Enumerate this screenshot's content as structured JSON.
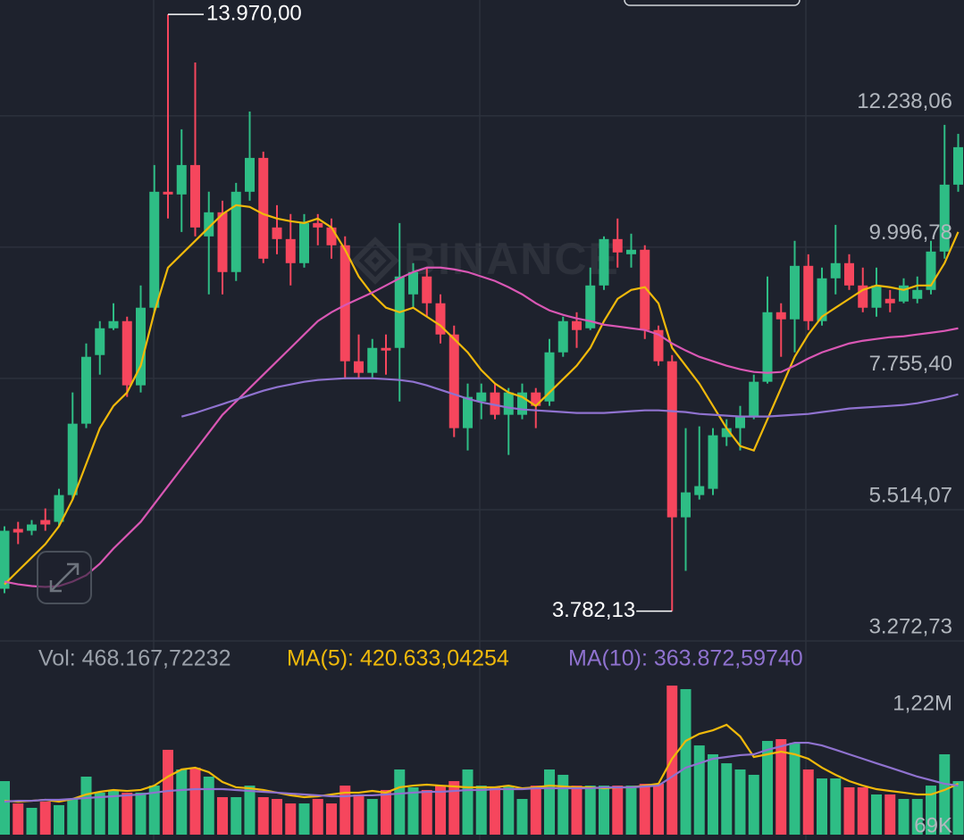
{
  "chart_data": {
    "type": "candlestick",
    "watermark": "BINANCE",
    "up_color": "#2ebd85",
    "down_color": "#f6465d",
    "ylim": [
      3272.73,
      14216
    ],
    "yticks": [
      {
        "value": 12238.06,
        "label": "12.238,06"
      },
      {
        "value": 9996.78,
        "label": "9.996,78"
      },
      {
        "value": 7755.4,
        "label": "7.755,40"
      },
      {
        "value": 5514.07,
        "label": "5.514,07"
      },
      {
        "value": 3272.73,
        "label": "3.272,73"
      }
    ],
    "grid": true,
    "open": [
      4164,
      5185,
      5154,
      5337,
      5306,
      5763,
      6982,
      8154,
      8611,
      8733,
      7637,
      8962,
      10942,
      10896,
      11398,
      10180,
      10591,
      9571,
      10942,
      11520,
      10332,
      10134,
      9723,
      10408,
      10332,
      10028,
      8048,
      7850,
      8276,
      8276,
      9190,
      9495,
      9038,
      8505,
      6906,
      7362,
      7515,
      7134,
      7134,
      7515,
      7362,
      8200,
      8733,
      8611,
      9342,
      10134,
      9875,
      9952,
      8581,
      8048,
      5383,
      5763,
      5870,
      6753,
      6906,
      7119,
      7698,
      8885,
      8764,
      9677,
      8733,
      9464,
      9723,
      9342,
      8962,
      9114,
      9068,
      9114,
      9266,
      9921,
      11063
    ],
    "high": [
      5230,
      5306,
      5337,
      5535,
      5870,
      7515,
      8352,
      8733,
      9038,
      8809,
      9342,
      11398,
      13970,
      12008,
      13150,
      10942,
      10789,
      11094,
      12312,
      11627,
      10713,
      10561,
      10561,
      10561,
      10485,
      10180,
      8505,
      8429,
      8505,
      10408,
      9723,
      9647,
      9190,
      8657,
      7667,
      7667,
      7667,
      7591,
      7667,
      7591,
      8429,
      8809,
      8885,
      9647,
      10180,
      10485,
      10226,
      10028,
      8657,
      8154,
      6906,
      6936,
      6906,
      7058,
      7286,
      7819,
      9495,
      9038,
      10104,
      9875,
      9647,
      10378,
      9875,
      9647,
      9647,
      9266,
      9464,
      9495,
      10104,
      12084,
      11931
    ],
    "low": [
      4088,
      4926,
      5078,
      5154,
      5230,
      5687,
      6906,
      7819,
      8581,
      7439,
      7515,
      8885,
      10485,
      10256,
      10180,
      9190,
      9190,
      9419,
      10789,
      9723,
      9875,
      9342,
      9647,
      10028,
      9799,
      7743,
      7743,
      7743,
      7819,
      7362,
      8962,
      8809,
      8352,
      6753,
      6525,
      7058,
      7058,
      6449,
      7058,
      6906,
      7286,
      8124,
      8276,
      8581,
      9266,
      9647,
      9647,
      8429,
      7972,
      3782.13,
      4469,
      5687,
      5763,
      6601,
      6525,
      7058,
      7667,
      8124,
      8200,
      8581,
      8657,
      9190,
      9266,
      8885,
      8809,
      8885,
      9038,
      9038,
      9190,
      9799,
      10942
    ],
    "close": [
      5154,
      5124,
      5261,
      5261,
      5763,
      6982,
      8124,
      8611,
      8733,
      7637,
      8962,
      10942,
      10896,
      11398,
      10332,
      10591,
      9571,
      10942,
      11520,
      9799,
      10134,
      9723,
      10408,
      10332,
      10028,
      8048,
      7850,
      8276,
      8231,
      9495,
      9571,
      9038,
      8505,
      6906,
      7439,
      7515,
      7134,
      7515,
      7515,
      7286,
      8200,
      8733,
      8581,
      9342,
      10134,
      9906,
      9952,
      8581,
      8048,
      5383,
      5809,
      5916,
      6784,
      6906,
      7119,
      7698,
      8885,
      8764,
      9677,
      8733,
      9464,
      9723,
      9342,
      8962,
      9342,
      9038,
      9342,
      9266,
      9921,
      11063,
      11703
    ],
    "ma_lines": [
      {
        "color": "#f0b90b",
        "values": [
          4240,
          4469,
          4697,
          4926,
          5230,
          5687,
          6296,
          6906,
          7286,
          7515,
          7972,
          8885,
          9647,
          9875,
          10104,
          10332,
          10561,
          10713,
          10683,
          10561,
          10485,
          10439,
          10408,
          10485,
          10332,
          9952,
          9495,
          9190,
          8962,
          8885,
          8962,
          8809,
          8657,
          8429,
          8200,
          7896,
          7667,
          7515,
          7439,
          7286,
          7515,
          7743,
          7972,
          8276,
          8733,
          9114,
          9266,
          9312,
          9038,
          8276,
          7972,
          7667,
          7286,
          6906,
          6601,
          6525,
          7058,
          7591,
          8124,
          8505,
          8809,
          8962,
          9114,
          9266,
          9342,
          9312,
          9266,
          9342,
          9342,
          9723,
          10256
        ]
      },
      {
        "color": "#d957b4",
        "values": [
          4286,
          4240,
          4210,
          4195,
          4210,
          4286,
          4393,
          4591,
          4850,
          5078,
          5306,
          5611,
          5916,
          6220,
          6525,
          6829,
          7134,
          7362,
          7591,
          7819,
          8048,
          8276,
          8505,
          8733,
          8885,
          9007,
          9114,
          9221,
          9342,
          9464,
          9571,
          9647,
          9647,
          9617,
          9571,
          9495,
          9419,
          9312,
          9190,
          9038,
          8916,
          8840,
          8779,
          8733,
          8672,
          8642,
          8611,
          8581,
          8505,
          8352,
          8231,
          8124,
          8048,
          7972,
          7911,
          7865,
          7850,
          7865,
          7972,
          8094,
          8200,
          8276,
          8352,
          8398,
          8429,
          8459,
          8474,
          8505,
          8535,
          8566,
          8611
        ]
      },
      {
        "color": "#8f72cf",
        "values": [
          null,
          null,
          null,
          null,
          null,
          null,
          null,
          null,
          null,
          null,
          null,
          null,
          null,
          7104,
          7165,
          7241,
          7317,
          7393,
          7469,
          7545,
          7606,
          7652,
          7698,
          7728,
          7743,
          7758,
          7758,
          7758,
          7743,
          7728,
          7698,
          7637,
          7560,
          7484,
          7408,
          7347,
          7302,
          7256,
          7225,
          7210,
          7195,
          7180,
          7165,
          7165,
          7165,
          7180,
          7195,
          7210,
          7210,
          7195,
          7180,
          7149,
          7134,
          7119,
          7104,
          7104,
          7104,
          7119,
          7134,
          7149,
          7180,
          7210,
          7241,
          7256,
          7271,
          7286,
          7302,
          7332,
          7378,
          7423,
          7484
        ]
      }
    ],
    "annotations": [
      {
        "value": 13970,
        "label": "13.970,00"
      },
      {
        "value": 3782.13,
        "label": "3.782,13"
      }
    ],
    "volume_label": "Vol: 468.167,72232",
    "volume": [
      501000,
      292000,
      251000,
      309000,
      276000,
      334000,
      543000,
      393000,
      418000,
      393000,
      393000,
      459000,
      794000,
      610000,
      627000,
      543000,
      351000,
      351000,
      459000,
      351000,
      334000,
      292000,
      292000,
      334000,
      292000,
      459000,
      376000,
      334000,
      418000,
      610000,
      443000,
      418000,
      459000,
      501000,
      610000,
      459000,
      443000,
      459000,
      334000,
      459000,
      610000,
      560000,
      459000,
      459000,
      459000,
      459000,
      459000,
      476000,
      476000,
      1395000,
      1362000,
      835000,
      752000,
      668000,
      610000,
      560000,
      877000,
      894000,
      860000,
      610000,
      526000,
      526000,
      443000,
      443000,
      376000,
      376000,
      334000,
      334000,
      459000,
      752000,
      501000
    ],
    "volume_ylim": [
      0,
      1462000
    ],
    "volume_yticks": [
      {
        "value": 1220000,
        "label": "1,22M"
      },
      {
        "value": 69000,
        "label": "69K"
      }
    ],
    "volume_series": [
      {
        "label": "MA(5): 420.633,04254",
        "color": "#f0b90b",
        "values": [
          317000,
          309000,
          317000,
          326000,
          309000,
          334000,
          376000,
          401000,
          418000,
          409000,
          418000,
          459000,
          543000,
          610000,
          627000,
          585000,
          493000,
          443000,
          434000,
          418000,
          393000,
          368000,
          351000,
          359000,
          376000,
          393000,
          393000,
          409000,
          393000,
          443000,
          459000,
          468000,
          459000,
          451000,
          443000,
          443000,
          443000,
          459000,
          434000,
          443000,
          459000,
          451000,
          443000,
          443000,
          434000,
          443000,
          443000,
          459000,
          476000,
          710000,
          877000,
          944000,
          977000,
          1028000,
          919000,
          727000,
          752000,
          777000,
          752000,
          710000,
          627000,
          560000,
          501000,
          459000,
          426000,
          409000,
          393000,
          376000,
          376000,
          418000,
          476000
        ]
      },
      {
        "label": "MA(10): 363.872,59740",
        "color": "#8f72cf",
        "values": [
          309000,
          317000,
          317000,
          326000,
          326000,
          334000,
          343000,
          351000,
          359000,
          368000,
          376000,
          393000,
          409000,
          418000,
          426000,
          426000,
          426000,
          418000,
          409000,
          401000,
          393000,
          384000,
          376000,
          368000,
          359000,
          359000,
          368000,
          368000,
          376000,
          384000,
          393000,
          401000,
          401000,
          409000,
          418000,
          418000,
          426000,
          426000,
          426000,
          434000,
          434000,
          434000,
          434000,
          434000,
          443000,
          443000,
          443000,
          451000,
          459000,
          543000,
          627000,
          668000,
          710000,
          727000,
          744000,
          752000,
          794000,
          827000,
          860000,
          860000,
          835000,
          794000,
          752000,
          710000,
          668000,
          627000,
          585000,
          543000,
          510000,
          476000,
          459000
        ]
      }
    ]
  }
}
